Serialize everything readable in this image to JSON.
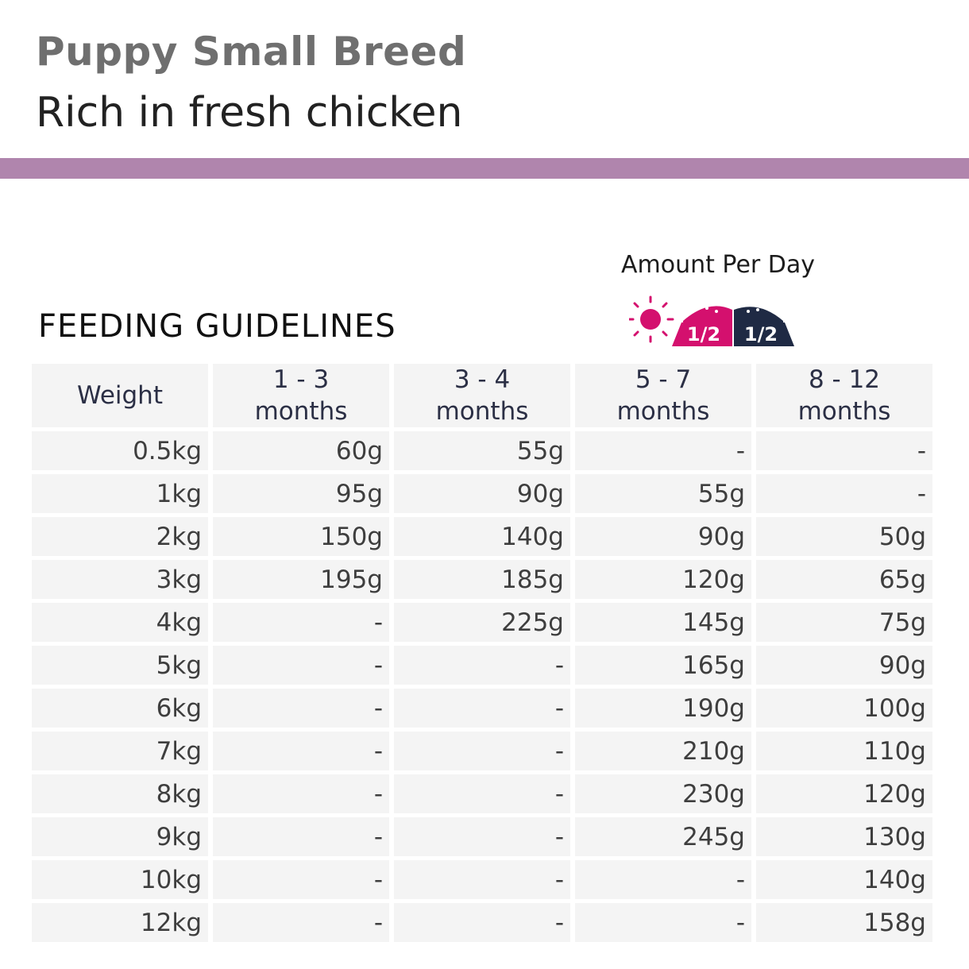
{
  "header": {
    "title": "Puppy Small Breed",
    "subtitle": "Rich in fresh chicken",
    "band_color": "#b085ad"
  },
  "feeding": {
    "heading": "FEEDING GUIDELINES",
    "amount_label": "Amount Per Day",
    "icon": {
      "sun_icon": "sun-icon",
      "moon_icon": "crescent-moon-icon",
      "morning_portion": "1/2",
      "evening_portion": "1/2",
      "morning_color": "#d4106e",
      "evening_color": "#1f2a44"
    },
    "table": {
      "columns": [
        {
          "line1": "Weight",
          "line2": ""
        },
        {
          "line1": "1 - 3",
          "line2": "months"
        },
        {
          "line1": "3 - 4",
          "line2": "months"
        },
        {
          "line1": "5 - 7",
          "line2": "months"
        },
        {
          "line1": "8 - 12",
          "line2": "months"
        }
      ],
      "rows": [
        [
          "0.5kg",
          "60g",
          "55g",
          "-",
          "-"
        ],
        [
          "1kg",
          "95g",
          "90g",
          "55g",
          "-"
        ],
        [
          "2kg",
          "150g",
          "140g",
          "90g",
          "50g"
        ],
        [
          "3kg",
          "195g",
          "185g",
          "120g",
          "65g"
        ],
        [
          "4kg",
          "-",
          "225g",
          "145g",
          "75g"
        ],
        [
          "5kg",
          "-",
          "-",
          "165g",
          "90g"
        ],
        [
          "6kg",
          "-",
          "-",
          "190g",
          "100g"
        ],
        [
          "7kg",
          "-",
          "-",
          "210g",
          "110g"
        ],
        [
          "8kg",
          "-",
          "-",
          "230g",
          "120g"
        ],
        [
          "9kg",
          "-",
          "-",
          "245g",
          "130g"
        ],
        [
          "10kg",
          "-",
          "-",
          "-",
          "140g"
        ],
        [
          "12kg",
          "-",
          "-",
          "-",
          "158g"
        ]
      ]
    }
  }
}
